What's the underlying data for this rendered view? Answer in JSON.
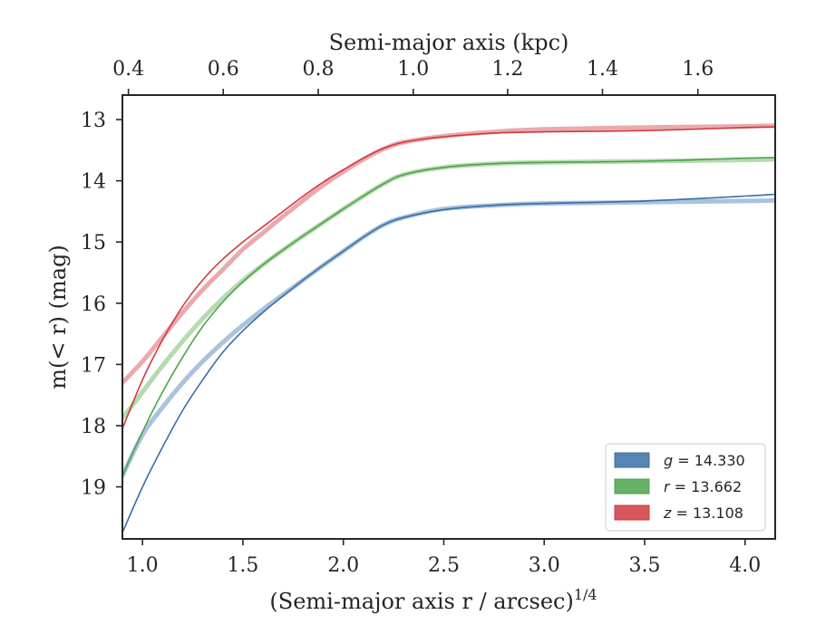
{
  "chart_data": {
    "type": "line",
    "xlabel_bottom": "(Semi-major axis r / arcsec)",
    "xlabel_bottom_exponent": "1/4",
    "xlabel_top": "Semi-major axis (kpc)",
    "ylabel": "m(< r) (mag)",
    "xlim": [
      0.9,
      4.15
    ],
    "ylim": [
      19.85,
      12.6
    ],
    "y_inverted": true,
    "x_ticks": [
      "1.0",
      "1.5",
      "2.0",
      "2.5",
      "3.0",
      "3.5",
      "4.0"
    ],
    "x_tick_values": [
      1.0,
      1.5,
      2.0,
      2.5,
      3.0,
      3.5,
      4.0
    ],
    "y_ticks": [
      "13",
      "14",
      "15",
      "16",
      "17",
      "18",
      "19"
    ],
    "y_tick_values": [
      13,
      14,
      15,
      16,
      17,
      18,
      19
    ],
    "top_ticks": [
      "0.4",
      "0.6",
      "0.8",
      "1.0",
      "1.2",
      "1.4",
      "1.6"
    ],
    "top_tick_positions": [
      0.93,
      1.402,
      1.875,
      2.348,
      2.818,
      3.29,
      3.765
    ],
    "grid": false,
    "legend_position": "bottom-right",
    "legend": [
      {
        "var": "g",
        "value": "= 14.330",
        "color": "#3a6ea5"
      },
      {
        "var": "r",
        "value": "= 13.662",
        "color": "#4ea24e"
      },
      {
        "var": "z",
        "value": "= 13.108",
        "color": "#d03a3f"
      }
    ],
    "series": [
      {
        "color": "#3a6ea5",
        "light": "#9ab8d8",
        "model": [
          [
            0.9,
            18.82
          ],
          [
            1.0,
            18.15
          ],
          [
            1.1,
            17.7
          ],
          [
            1.2,
            17.3
          ],
          [
            1.3,
            16.95
          ],
          [
            1.4,
            16.64
          ],
          [
            1.5,
            16.36
          ],
          [
            1.6,
            16.1
          ],
          [
            1.7,
            15.86
          ],
          [
            1.8,
            15.62
          ],
          [
            1.9,
            15.38
          ],
          [
            2.0,
            15.15
          ],
          [
            2.1,
            14.92
          ],
          [
            2.2,
            14.72
          ],
          [
            2.3,
            14.6
          ],
          [
            2.5,
            14.46
          ],
          [
            2.75,
            14.4
          ],
          [
            3.0,
            14.37
          ],
          [
            3.5,
            14.35
          ],
          [
            4.0,
            14.33
          ],
          [
            4.15,
            14.32
          ]
        ],
        "data": [
          [
            0.9,
            19.75
          ],
          [
            1.0,
            19.0
          ],
          [
            1.1,
            18.35
          ],
          [
            1.2,
            17.75
          ],
          [
            1.3,
            17.25
          ],
          [
            1.4,
            16.8
          ],
          [
            1.5,
            16.45
          ],
          [
            1.6,
            16.15
          ],
          [
            1.7,
            15.88
          ],
          [
            1.8,
            15.62
          ],
          [
            1.9,
            15.38
          ],
          [
            2.0,
            15.15
          ],
          [
            2.1,
            14.92
          ],
          [
            2.2,
            14.72
          ],
          [
            2.3,
            14.6
          ],
          [
            2.5,
            14.47
          ],
          [
            2.75,
            14.4
          ],
          [
            3.0,
            14.37
          ],
          [
            3.5,
            14.33
          ],
          [
            4.0,
            14.25
          ],
          [
            4.15,
            14.22
          ]
        ]
      },
      {
        "color": "#4ea24e",
        "light": "#a8d4a0",
        "model": [
          [
            0.9,
            17.88
          ],
          [
            1.0,
            17.45
          ],
          [
            1.1,
            17.02
          ],
          [
            1.2,
            16.62
          ],
          [
            1.3,
            16.25
          ],
          [
            1.4,
            15.92
          ],
          [
            1.5,
            15.63
          ],
          [
            1.6,
            15.37
          ],
          [
            1.7,
            15.13
          ],
          [
            1.8,
            14.9
          ],
          [
            1.9,
            14.68
          ],
          [
            2.0,
            14.46
          ],
          [
            2.1,
            14.25
          ],
          [
            2.2,
            14.05
          ],
          [
            2.3,
            13.9
          ],
          [
            2.5,
            13.78
          ],
          [
            2.75,
            13.72
          ],
          [
            3.0,
            13.7
          ],
          [
            3.5,
            13.68
          ],
          [
            4.0,
            13.66
          ],
          [
            4.15,
            13.65
          ]
        ],
        "data": [
          [
            0.9,
            18.82
          ],
          [
            1.0,
            18.1
          ],
          [
            1.1,
            17.45
          ],
          [
            1.2,
            16.88
          ],
          [
            1.3,
            16.38
          ],
          [
            1.4,
            15.98
          ],
          [
            1.5,
            15.65
          ],
          [
            1.6,
            15.37
          ],
          [
            1.7,
            15.13
          ],
          [
            1.8,
            14.9
          ],
          [
            1.9,
            14.68
          ],
          [
            2.0,
            14.46
          ],
          [
            2.1,
            14.25
          ],
          [
            2.2,
            14.05
          ],
          [
            2.3,
            13.9
          ],
          [
            2.5,
            13.78
          ],
          [
            2.75,
            13.72
          ],
          [
            3.0,
            13.7
          ],
          [
            3.5,
            13.68
          ],
          [
            4.0,
            13.63
          ],
          [
            4.15,
            13.62
          ]
        ]
      },
      {
        "color": "#d03a3f",
        "light": "#e89a9c",
        "model": [
          [
            0.9,
            17.3
          ],
          [
            1.0,
            16.95
          ],
          [
            1.1,
            16.55
          ],
          [
            1.2,
            16.15
          ],
          [
            1.3,
            15.78
          ],
          [
            1.4,
            15.45
          ],
          [
            1.5,
            15.12
          ],
          [
            1.6,
            14.85
          ],
          [
            1.7,
            14.58
          ],
          [
            1.8,
            14.32
          ],
          [
            1.9,
            14.07
          ],
          [
            2.0,
            13.85
          ],
          [
            2.1,
            13.65
          ],
          [
            2.2,
            13.48
          ],
          [
            2.3,
            13.37
          ],
          [
            2.5,
            13.27
          ],
          [
            2.75,
            13.2
          ],
          [
            3.0,
            13.16
          ],
          [
            3.5,
            13.13
          ],
          [
            4.0,
            13.11
          ],
          [
            4.15,
            13.1
          ]
        ],
        "data": [
          [
            0.9,
            18.05
          ],
          [
            1.0,
            17.25
          ],
          [
            1.1,
            16.6
          ],
          [
            1.2,
            16.05
          ],
          [
            1.3,
            15.62
          ],
          [
            1.4,
            15.28
          ],
          [
            1.5,
            15.0
          ],
          [
            1.6,
            14.75
          ],
          [
            1.7,
            14.5
          ],
          [
            1.8,
            14.25
          ],
          [
            1.9,
            14.02
          ],
          [
            2.0,
            13.82
          ],
          [
            2.1,
            13.63
          ],
          [
            2.2,
            13.47
          ],
          [
            2.3,
            13.37
          ],
          [
            2.5,
            13.28
          ],
          [
            2.75,
            13.22
          ],
          [
            3.0,
            13.2
          ],
          [
            3.5,
            13.18
          ],
          [
            4.0,
            13.13
          ],
          [
            4.15,
            13.12
          ]
        ]
      }
    ]
  }
}
